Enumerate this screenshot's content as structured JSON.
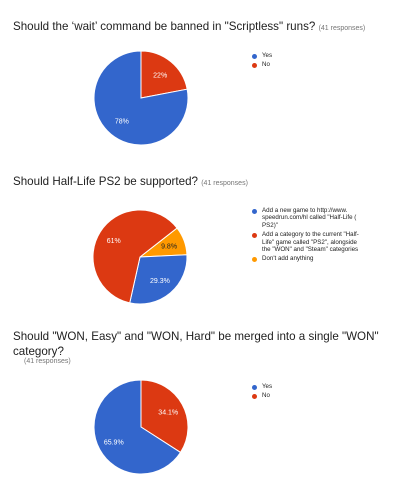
{
  "questions": [
    {
      "title": "Should the ‘wait’ command be banned in \"Scriptless\" runs?",
      "responses": "(41 responses)"
    },
    {
      "title": "Should Half-Life PS2 be supported?",
      "responses": "(41 responses)"
    },
    {
      "title_line1": "Should \"WON, Easy\" and \"WON, Hard\" be merged into a single \"WON\"",
      "title_line2": "category?",
      "responses": "(41 responses)"
    }
  ],
  "colors": {
    "blue": "#3366cc",
    "red": "#dc3912",
    "orange": "#ff9900"
  },
  "chart_data": [
    {
      "type": "pie",
      "title": "Should the ‘wait’ command be banned in \"Scriptless\" runs?",
      "slices": [
        {
          "label": "Yes",
          "value": 78,
          "display": "78%",
          "color": "#3366cc"
        },
        {
          "label": "No",
          "value": 22,
          "display": "22%",
          "color": "#dc3912"
        }
      ],
      "legend_position": "right"
    },
    {
      "type": "pie",
      "title": "Should Half-Life PS2 be supported?",
      "slices": [
        {
          "label": "Add a new game to http://www.speedrun.com/hl called \"Half-Life (PS2)\"",
          "legend_lines": [
            "Add a new game to http://www.",
            "speedrun.com/hl called \"Half-Life (",
            "PS2)\""
          ],
          "value": 29.3,
          "display": "29.3%",
          "color": "#3366cc"
        },
        {
          "label": "Add a category to the current \"Half-Life\" game called \"PS2\", alongside the \"WON\" and \"Steam\" categories",
          "legend_lines": [
            "Add a category to the current \"Half-",
            "Life\" game called \"PS2\", alongside",
            "the \"WON\" and \"Steam\" categories"
          ],
          "value": 61,
          "display": "61%",
          "color": "#dc3912"
        },
        {
          "label": "Don't add anything",
          "legend_lines": [
            "Don't add anything"
          ],
          "value": 9.8,
          "display": "9.8%",
          "color": "#ff9900"
        }
      ],
      "legend_position": "right"
    },
    {
      "type": "pie",
      "title": "Should \"WON, Easy\" and \"WON, Hard\" be merged into a single \"WON\" category?",
      "slices": [
        {
          "label": "Yes",
          "value": 65.9,
          "display": "65.9%",
          "color": "#3366cc"
        },
        {
          "label": "No",
          "value": 34.1,
          "display": "34.1%",
          "color": "#dc3912"
        }
      ],
      "legend_position": "right"
    }
  ]
}
